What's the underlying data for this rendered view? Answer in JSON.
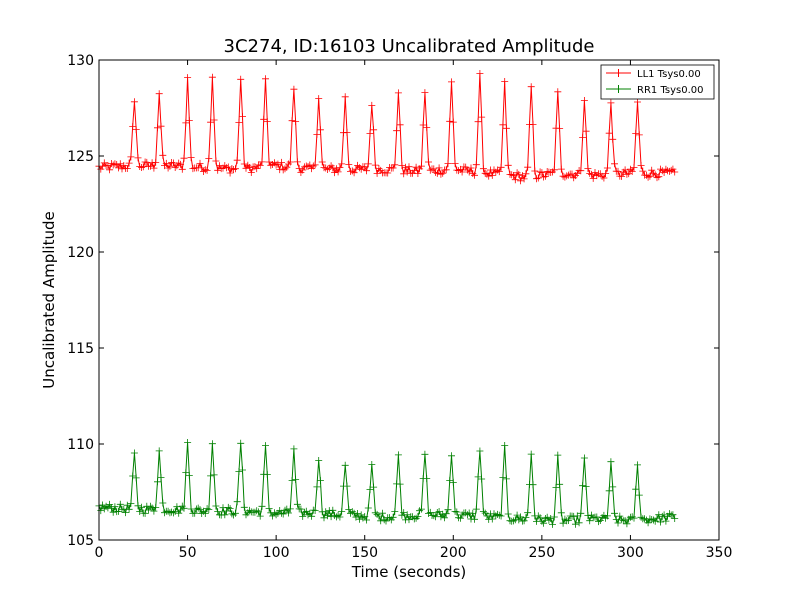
{
  "chart_data": {
    "type": "line",
    "title": "3C274, ID:16103 Uncalibrated Amplitude",
    "xlabel": "Time (seconds)",
    "ylabel": "Uncalibrated Amplitude",
    "xlim": [
      0,
      350
    ],
    "ylim": [
      105,
      130
    ],
    "x_ticks": [
      0,
      50,
      100,
      150,
      200,
      250,
      300,
      350
    ],
    "y_ticks": [
      105,
      110,
      115,
      120,
      125,
      130
    ],
    "grid": false,
    "legend_position": "top-right",
    "marker": "+",
    "x_range": [
      0,
      325
    ],
    "sample_step": 1,
    "peak_times": [
      20,
      34,
      50,
      64,
      80,
      94,
      110,
      124,
      139,
      154,
      169,
      184,
      199,
      215,
      229,
      244,
      259,
      274,
      289,
      304
    ],
    "series": [
      {
        "name": "LL1 Tsys0.00",
        "color": "#ff0000",
        "baseline": {
          "x": [
            0,
            20,
            40,
            60,
            80,
            100,
            120,
            140,
            160,
            180,
            200,
            220,
            240,
            260,
            280,
            300,
            325
          ],
          "y": [
            124.4,
            124.5,
            124.5,
            124.4,
            124.3,
            124.5,
            124.3,
            124.3,
            124.3,
            124.2,
            124.3,
            124.1,
            123.9,
            124.1,
            124.0,
            124.1,
            124.1
          ]
        },
        "peak_values": [
          128.0,
          128.3,
          129.0,
          129.2,
          129.0,
          128.8,
          128.6,
          128.1,
          128.0,
          127.8,
          128.3,
          128.4,
          128.8,
          129.1,
          128.7,
          128.6,
          128.2,
          128.0,
          127.8,
          127.8
        ]
      },
      {
        "name": "RR1 Tsys0.00",
        "color": "#008000",
        "baseline": {
          "x": [
            0,
            20,
            40,
            60,
            80,
            100,
            120,
            140,
            160,
            180,
            200,
            220,
            240,
            260,
            280,
            300,
            325
          ],
          "y": [
            106.7,
            106.6,
            106.6,
            106.5,
            106.5,
            106.4,
            106.4,
            106.3,
            106.2,
            106.3,
            106.3,
            106.2,
            106.1,
            106.0,
            106.1,
            106.0,
            106.2
          ]
        },
        "peak_values": [
          109.4,
          109.6,
          110.0,
          110.1,
          110.1,
          109.8,
          109.6,
          109.3,
          108.9,
          108.8,
          109.3,
          109.5,
          109.6,
          109.8,
          109.7,
          109.5,
          109.2,
          109.1,
          108.9,
          108.8
        ]
      }
    ]
  }
}
